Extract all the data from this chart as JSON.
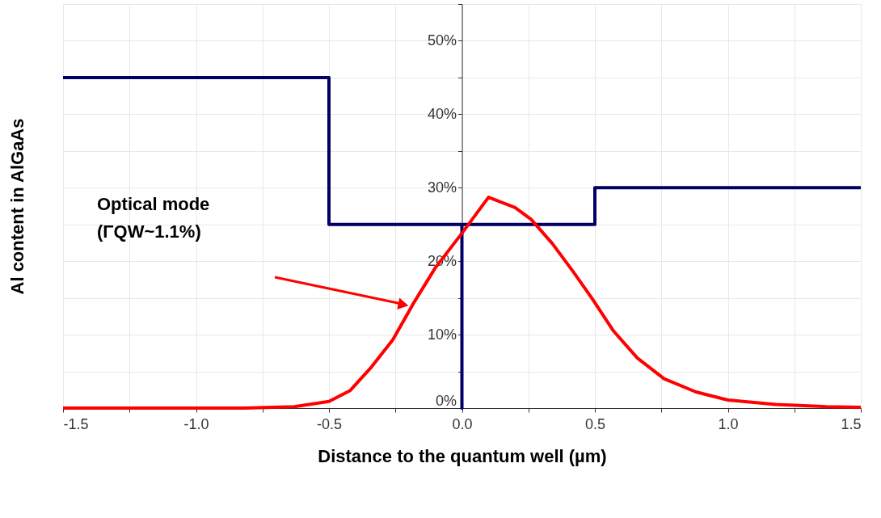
{
  "chart_data": {
    "type": "line",
    "xlabel": "Distance to the quantum well (µm)",
    "ylabel": "Al content in AlGaAs",
    "xlim": [
      -1.5,
      1.5
    ],
    "xticks": [
      -1.5,
      {
        "value": -1.25,
        "label": null
      },
      "-1.0",
      {
        "value": -0.75,
        "label": null
      },
      -0.5,
      {
        "value": -0.25,
        "label": null
      },
      "0.0",
      {
        "value": 0.25,
        "label": null
      },
      0.5,
      {
        "value": 0.75,
        "label": null
      },
      "1.0",
      {
        "value": 1.25,
        "label": null
      },
      1.5
    ],
    "ylim": [
      0,
      55
    ],
    "yticks": [
      {
        "value": 0,
        "label": "0%"
      },
      {
        "value": 5,
        "label": null
      },
      {
        "value": 10,
        "label": "10%"
      },
      {
        "value": 15,
        "label": null
      },
      {
        "value": 20,
        "label": "20%"
      },
      {
        "value": 25,
        "label": null
      },
      {
        "value": 30,
        "label": "30%"
      },
      {
        "value": 35,
        "label": null
      },
      {
        "value": 40,
        "label": "40%"
      },
      {
        "value": 45,
        "label": null
      },
      {
        "value": 50,
        "label": "50%"
      },
      {
        "value": 55,
        "label": null
      }
    ],
    "grid": true,
    "marker": "none",
    "line_style": "solid",
    "series": [
      {
        "color": "#000066",
        "x": [
          -1.5,
          -0.5,
          -0.5,
          0,
          0,
          0,
          0.5,
          0.5,
          1.5
        ],
        "values": [
          45,
          45,
          25,
          25,
          0,
          25,
          25,
          30,
          30
        ]
      },
      {
        "color": "#ff0000",
        "x": [
          -1.5,
          -0.82,
          -0.63,
          -0.5,
          -0.42,
          -0.34,
          -0.26,
          -0.18,
          -0.1,
          0,
          0.045,
          0.1,
          0.2,
          0.26,
          0.34,
          0.42,
          0.49,
          0.57,
          0.66,
          0.76,
          0.88,
          1.0,
          1.18,
          1.37,
          1.5
        ],
        "values": [
          0,
          0,
          0.2,
          0.9,
          2.4,
          5.6,
          9.3,
          14.4,
          19.1,
          23.8,
          26,
          28.7,
          27.3,
          25.7,
          22.4,
          18.5,
          14.9,
          10.5,
          6.8,
          4.0,
          2.2,
          1.1,
          0.5,
          0.2,
          0.1
        ]
      }
    ],
    "annotations": [
      "Optical mode\n(ΓQW~1.1%)"
    ]
  }
}
